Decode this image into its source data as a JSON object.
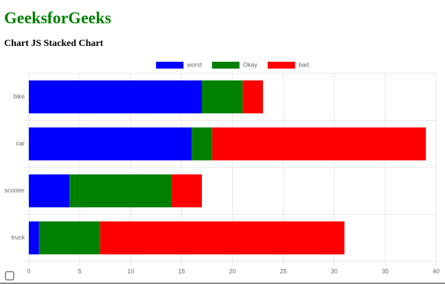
{
  "page": {
    "title": "GeeksforGeeks",
    "subtitle": "Chart JS Stacked Chart"
  },
  "chart_data": {
    "type": "bar",
    "orientation": "horizontal",
    "stacked": true,
    "categories": [
      "bike",
      "car",
      "scooter",
      "truck"
    ],
    "series": [
      {
        "name": "worst",
        "color": "#0000ff",
        "values": [
          17,
          16,
          4,
          1
        ]
      },
      {
        "name": "Okay",
        "color": "#008000",
        "values": [
          4,
          2,
          10,
          6
        ]
      },
      {
        "name": "bad",
        "color": "#ff0000",
        "values": [
          2,
          21,
          3,
          24
        ]
      }
    ],
    "xlim": [
      0,
      40
    ],
    "xticks": [
      0,
      5,
      10,
      15,
      20,
      25,
      30,
      35,
      40
    ],
    "grid": true,
    "legend": "top"
  }
}
